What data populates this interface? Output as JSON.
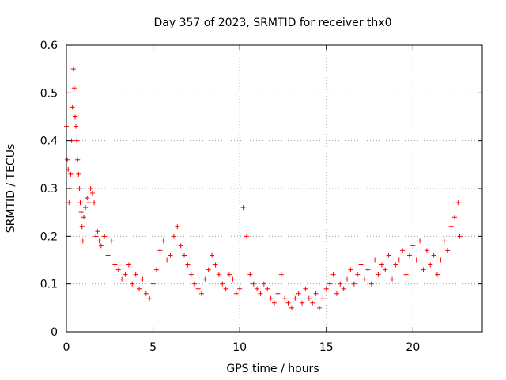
{
  "chart_data": {
    "type": "scatter",
    "title": "Day 357 of 2023, SRMTID for receiver thx0",
    "xlabel": "GPS time / hours",
    "ylabel": "SRMTID / TECUs",
    "xlim": [
      0,
      24
    ],
    "ylim": [
      0,
      0.6
    ],
    "xticks": [
      "0",
      "5",
      "10",
      "15",
      "20"
    ],
    "yticks": [
      "0",
      "0.1",
      "0.2",
      "0.3",
      "0.4",
      "0.5",
      "0.6"
    ],
    "grid": true,
    "marker": "+",
    "color": "#ff0000",
    "series": [
      {
        "name": "thx0",
        "x": [
          0.0,
          0.05,
          0.1,
          0.15,
          0.2,
          0.25,
          0.3,
          0.35,
          0.4,
          0.45,
          0.5,
          0.55,
          0.6,
          0.65,
          0.7,
          0.75,
          0.8,
          0.85,
          0.9,
          0.95,
          1.0,
          1.1,
          1.2,
          1.3,
          1.4,
          1.5,
          1.6,
          1.7,
          1.8,
          1.9,
          2.0,
          2.2,
          2.4,
          2.6,
          2.8,
          3.0,
          3.2,
          3.4,
          3.6,
          3.8,
          4.0,
          4.2,
          4.4,
          4.6,
          4.8,
          5.0,
          5.2,
          5.4,
          5.6,
          5.8,
          6.0,
          6.2,
          6.4,
          6.6,
          6.8,
          7.0,
          7.2,
          7.4,
          7.6,
          7.8,
          8.0,
          8.2,
          8.4,
          8.6,
          8.8,
          9.0,
          9.2,
          9.4,
          9.6,
          9.8,
          10.0,
          10.2,
          10.4,
          10.6,
          10.8,
          11.0,
          11.2,
          11.4,
          11.6,
          11.8,
          12.0,
          12.2,
          12.4,
          12.6,
          12.8,
          13.0,
          13.2,
          13.4,
          13.6,
          13.8,
          14.0,
          14.2,
          14.4,
          14.6,
          14.8,
          15.0,
          15.2,
          15.4,
          15.6,
          15.8,
          16.0,
          16.2,
          16.4,
          16.6,
          16.8,
          17.0,
          17.2,
          17.4,
          17.6,
          17.8,
          18.0,
          18.2,
          18.4,
          18.6,
          18.8,
          19.0,
          19.2,
          19.4,
          19.6,
          19.8,
          20.0,
          20.2,
          20.4,
          20.6,
          20.8,
          21.0,
          21.2,
          21.4,
          21.6,
          21.8,
          22.0,
          22.2,
          22.4,
          22.6,
          22.7
        ],
        "y": [
          0.43,
          0.36,
          0.34,
          0.27,
          0.3,
          0.33,
          0.4,
          0.47,
          0.55,
          0.51,
          0.45,
          0.43,
          0.4,
          0.36,
          0.33,
          0.3,
          0.27,
          0.25,
          0.22,
          0.19,
          0.24,
          0.26,
          0.28,
          0.27,
          0.3,
          0.29,
          0.27,
          0.2,
          0.21,
          0.19,
          0.18,
          0.2,
          0.16,
          0.19,
          0.14,
          0.13,
          0.11,
          0.12,
          0.14,
          0.1,
          0.12,
          0.09,
          0.11,
          0.08,
          0.07,
          0.1,
          0.13,
          0.17,
          0.19,
          0.15,
          0.16,
          0.2,
          0.22,
          0.18,
          0.16,
          0.14,
          0.12,
          0.1,
          0.09,
          0.08,
          0.11,
          0.13,
          0.16,
          0.14,
          0.12,
          0.1,
          0.09,
          0.12,
          0.11,
          0.08,
          0.09,
          0.26,
          0.2,
          0.12,
          0.1,
          0.09,
          0.08,
          0.1,
          0.09,
          0.07,
          0.06,
          0.08,
          0.12,
          0.07,
          0.06,
          0.05,
          0.07,
          0.08,
          0.06,
          0.09,
          0.07,
          0.06,
          0.08,
          0.05,
          0.07,
          0.09,
          0.1,
          0.12,
          0.08,
          0.1,
          0.09,
          0.11,
          0.13,
          0.1,
          0.12,
          0.14,
          0.11,
          0.13,
          0.1,
          0.15,
          0.12,
          0.14,
          0.13,
          0.16,
          0.11,
          0.14,
          0.15,
          0.17,
          0.12,
          0.16,
          0.18,
          0.15,
          0.19,
          0.13,
          0.17,
          0.14,
          0.16,
          0.12,
          0.15,
          0.19,
          0.17,
          0.22,
          0.24,
          0.27,
          0.2
        ]
      }
    ]
  }
}
